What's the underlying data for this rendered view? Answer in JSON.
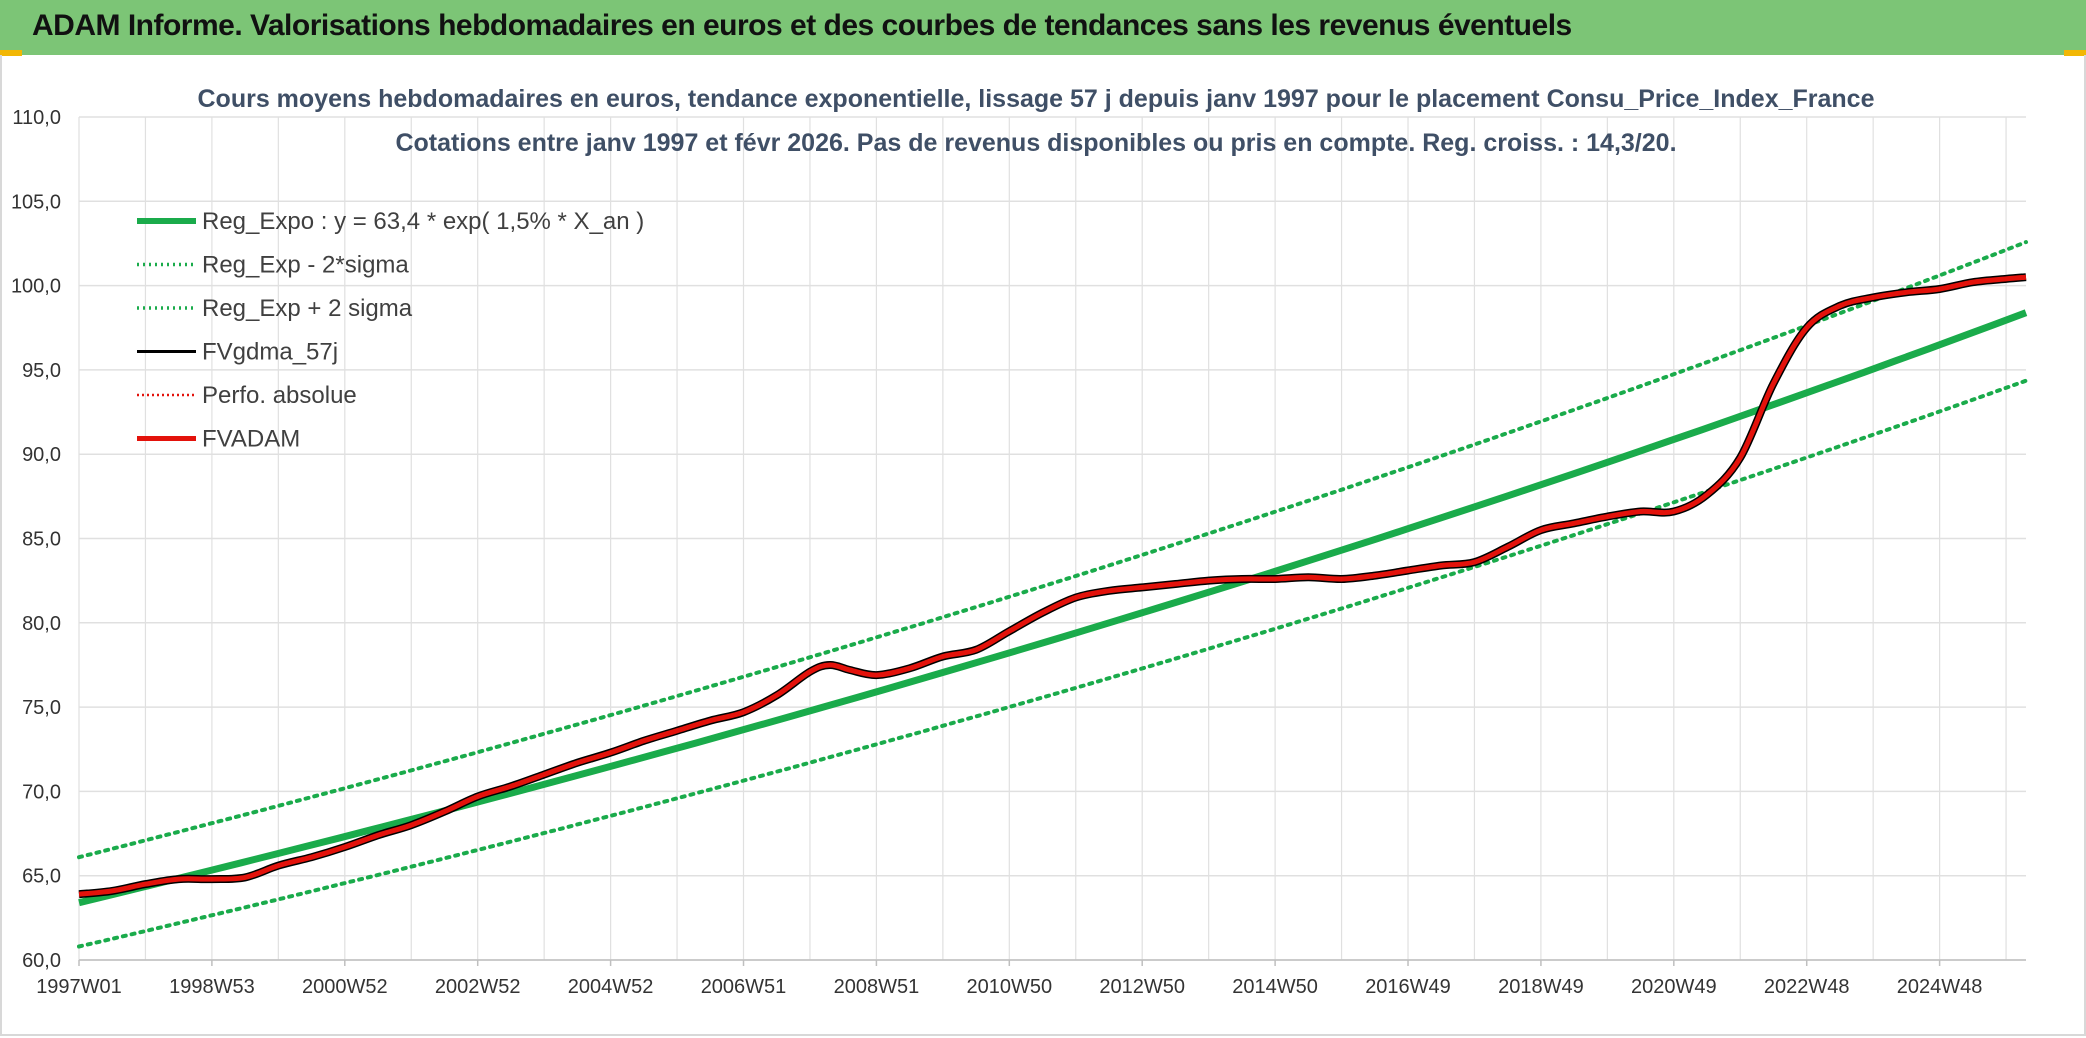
{
  "banner": {
    "title": "ADAM Informe. Valorisations hebdomadaires en euros et des courbes de tendances sans les revenus éventuels"
  },
  "colors": {
    "banner": "#7cc576",
    "reg": "#1aab4b",
    "fvgdma": "#000000",
    "fvadam": "#e3120b",
    "perfo": "#e3120b",
    "grid": "#e0e0e0"
  },
  "chart_data": {
    "type": "line",
    "title": "Cours moyens hebdomadaires en euros, tendance exponentielle, lissage 57 j depuis janv 1997 pour le placement Consu_Price_Index_France",
    "subtitle": "Cotations entre janv 1997 et févr 2026. Pas de revenus disponibles ou pris en compte. Reg. croiss. : 14,3/20.",
    "xlabel": "",
    "ylabel": "",
    "ylim": [
      60,
      110
    ],
    "xlim": [
      1997.0,
      2026.3
    ],
    "grid": true,
    "legend_position": "top-left",
    "y_ticks": [
      "60,0",
      "65,0",
      "70,0",
      "75,0",
      "80,0",
      "85,0",
      "90,0",
      "95,0",
      "100,0",
      "105,0",
      "110,0"
    ],
    "x_ticks": [
      {
        "label": "1997W01",
        "t": 1997.0
      },
      {
        "label": "1998W53",
        "t": 1999.0
      },
      {
        "label": "2000W52",
        "t": 2001.0
      },
      {
        "label": "2002W52",
        "t": 2003.0
      },
      {
        "label": "2004W52",
        "t": 2005.0
      },
      {
        "label": "2006W51",
        "t": 2007.0
      },
      {
        "label": "2008W51",
        "t": 2009.0
      },
      {
        "label": "2010W50",
        "t": 2011.0
      },
      {
        "label": "2012W50",
        "t": 2013.0
      },
      {
        "label": "2014W50",
        "t": 2015.0
      },
      {
        "label": "2016W49",
        "t": 2017.0
      },
      {
        "label": "2018W49",
        "t": 2019.0
      },
      {
        "label": "2020W49",
        "t": 2021.0
      },
      {
        "label": "2022W48",
        "t": 2023.0
      },
      {
        "label": "2024W48",
        "t": 2025.0
      }
    ],
    "legend": [
      {
        "key": "reg",
        "label": "Reg_Expo : y = 63,4 * exp( 1,5% *  X_an )",
        "style": "thick"
      },
      {
        "key": "reg_low",
        "label": "Reg_Exp - 2*sigma",
        "style": "dotted-green"
      },
      {
        "key": "reg_high",
        "label": "Reg_Exp + 2 sigma",
        "style": "dotted-green"
      },
      {
        "key": "fvgdma",
        "label": "FVgdma_57j",
        "style": "black"
      },
      {
        "key": "perfo",
        "label": "Perfo. absolue",
        "style": "dotted-red"
      },
      {
        "key": "fvadam",
        "label": "FVADAM",
        "style": "red"
      }
    ],
    "series": [
      {
        "name": "Reg_Expo",
        "x": [
          1997.0,
          2026.3
        ],
        "values": [
          63.4,
          97.8
        ],
        "growth": 0.015
      },
      {
        "name": "Reg_Exp - 2*sigma",
        "x": [
          1997.0,
          2026.3
        ],
        "values": [
          60.8,
          94.0
        ],
        "growth": 0.015
      },
      {
        "name": "Reg_Exp + 2 sigma",
        "x": [
          1997.0,
          2026.3
        ],
        "values": [
          66.1,
          101.9
        ],
        "growth": 0.015
      },
      {
        "name": "FVADAM",
        "x": [
          1997.0,
          1997.5,
          1998.0,
          1998.5,
          1999.0,
          1999.5,
          2000.0,
          2000.5,
          2001.0,
          2001.5,
          2002.0,
          2002.5,
          2003.0,
          2003.5,
          2004.0,
          2004.5,
          2005.0,
          2005.5,
          2006.0,
          2006.5,
          2007.0,
          2007.5,
          2008.0,
          2008.3,
          2008.6,
          2009.0,
          2009.5,
          2010.0,
          2010.5,
          2011.0,
          2011.5,
          2012.0,
          2012.5,
          2013.0,
          2013.5,
          2014.0,
          2014.5,
          2015.0,
          2015.5,
          2016.0,
          2016.5,
          2017.0,
          2017.5,
          2018.0,
          2018.5,
          2019.0,
          2019.5,
          2020.0,
          2020.5,
          2021.0,
          2021.5,
          2022.0,
          2022.5,
          2023.0,
          2023.5,
          2024.0,
          2024.5,
          2025.0,
          2025.5,
          2026.0,
          2026.3
        ],
        "values": [
          63.9,
          64.1,
          64.5,
          64.8,
          64.8,
          64.9,
          65.6,
          66.1,
          66.7,
          67.4,
          68.0,
          68.8,
          69.7,
          70.3,
          71.0,
          71.7,
          72.3,
          73.0,
          73.6,
          74.2,
          74.7,
          75.7,
          77.1,
          77.5,
          77.2,
          76.9,
          77.3,
          78.0,
          78.4,
          79.5,
          80.6,
          81.5,
          81.9,
          82.1,
          82.3,
          82.5,
          82.6,
          82.6,
          82.7,
          82.6,
          82.8,
          83.1,
          83.4,
          83.6,
          84.5,
          85.5,
          85.9,
          86.3,
          86.6,
          86.6,
          87.6,
          89.8,
          94.2,
          97.5,
          98.8,
          99.3,
          99.6,
          99.8,
          100.2,
          100.4,
          100.5
        ]
      }
    ]
  }
}
